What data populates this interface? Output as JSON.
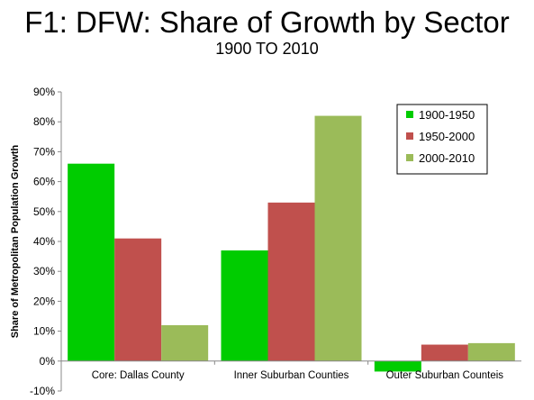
{
  "chart_data": {
    "type": "bar",
    "title": "F1: DFW: Share of Growth by Sector",
    "subtitle": "1900 TO 2010",
    "ylabel": "Share of Metropolitan Population Growth",
    "xlabel": "",
    "ylim": [
      -10,
      90
    ],
    "yticks": [
      "-10%",
      "0%",
      "10%",
      "20%",
      "30%",
      "40%",
      "50%",
      "60%",
      "70%",
      "80%",
      "90%"
    ],
    "grid": false,
    "legend_position": "top-right",
    "categories": [
      "Core: Dallas County",
      "Inner Suburban Counties",
      "Outer Suburban Counteis"
    ],
    "series": [
      {
        "name": "1900-1950",
        "color": "#00cc00",
        "values": [
          66,
          37,
          -3.5
        ]
      },
      {
        "name": "1950-2000",
        "color": "#c0504d",
        "values": [
          41,
          53,
          5.5
        ]
      },
      {
        "name": "2000-2010",
        "color": "#9bbb59",
        "values": [
          12,
          82,
          6
        ]
      }
    ]
  }
}
